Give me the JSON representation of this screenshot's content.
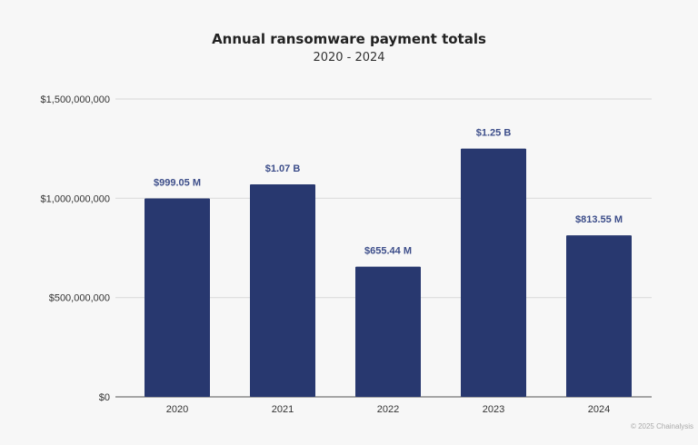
{
  "chart_data": {
    "type": "bar",
    "title": "Annual ransomware payment totals",
    "subtitle": "2020 - 2024",
    "categories": [
      "2020",
      "2021",
      "2022",
      "2023",
      "2024"
    ],
    "values": [
      999050000,
      1070000000,
      655440000,
      1250000000,
      813550000
    ],
    "data_labels": [
      "$999.05 M",
      "$1.07 B",
      "$655.44 M",
      "$1.25 B",
      "$813.55 M"
    ],
    "xlabel": "",
    "ylabel": "",
    "ylim": [
      0,
      1500000000
    ],
    "yticks": [
      0,
      500000000,
      1000000000,
      1500000000
    ],
    "ytick_labels": [
      "$0",
      "$500,000,000",
      "$1,000,000,000",
      "$1,500,000,000"
    ],
    "grid": true,
    "bar_color": "#28386f",
    "label_color": "#3d4e8a"
  },
  "footer": {
    "copyright": "© 2025 Chainalysis"
  }
}
